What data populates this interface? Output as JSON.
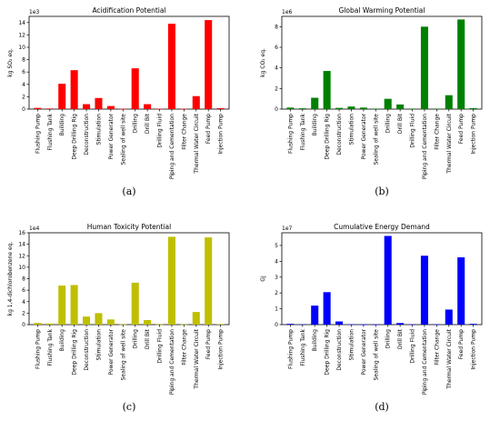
{
  "chart_data": [
    {
      "type": "bar",
      "title": "Acidification Potential",
      "ylabel": "kg SO₂ eq.",
      "multiplier": "1e3",
      "caption": "(a)",
      "color": "#ff0000",
      "ylim": [
        0,
        15
      ],
      "yticks": [
        "0",
        "2",
        "4",
        "6",
        "8",
        "10",
        "12",
        "14"
      ],
      "ytick_values": [
        0,
        2,
        4,
        6,
        8,
        10,
        12,
        14
      ],
      "categories": [
        "Flushing Pump",
        "Flushing Tank",
        "Building",
        "Deep Drilling Rig",
        "Deconstruction",
        "Stimulation",
        "Power Generator",
        "Sealing of well site",
        "Drilling",
        "Drill Bit",
        "Drilling Fluid",
        "Piping and Cementation",
        "Filter Change",
        "Thermal Water Circuit",
        "Feed Pump",
        "Injection Pump"
      ],
      "values": [
        0.2,
        0.1,
        4.1,
        6.3,
        0.8,
        1.8,
        0.5,
        0.05,
        6.6,
        0.8,
        0.05,
        13.8,
        0.05,
        2.1,
        14.4,
        0.15
      ]
    },
    {
      "type": "bar",
      "title": "Global Warming Potential",
      "ylabel": "kg CO₂ eq.",
      "multiplier": "1e6",
      "caption": "(b)",
      "color": "#008000",
      "ylim": [
        0,
        9
      ],
      "yticks": [
        "0",
        "2",
        "4",
        "6",
        "8"
      ],
      "ytick_values": [
        0,
        2,
        4,
        6,
        8
      ],
      "categories": [
        "Flushing Pump",
        "Flushing Tank",
        "Building",
        "Deep Drilling Rig",
        "Deconstruction",
        "Stimulation",
        "Power Generator",
        "Sealing of well site",
        "Drilling",
        "Drill Bit",
        "Drilling Fluid",
        "Piping and Cementation",
        "Filter Change",
        "Thermal Water Circuit",
        "Feed Pump",
        "Injection Pump"
      ],
      "values": [
        0.15,
        0.08,
        1.1,
        3.7,
        0.12,
        0.25,
        0.15,
        0.05,
        1.0,
        0.45,
        0.05,
        8.0,
        0.05,
        1.35,
        8.7,
        0.1
      ]
    },
    {
      "type": "bar",
      "title": "Human Toxicity Potential",
      "ylabel": "kg 1,4-dichlorobenzene eq.",
      "multiplier": "1e4",
      "caption": "(c)",
      "color": "#bfbf00",
      "ylim": [
        0,
        16
      ],
      "yticks": [
        "0",
        "2",
        "4",
        "6",
        "8",
        "10",
        "12",
        "14",
        "16"
      ],
      "ytick_values": [
        0,
        2,
        4,
        6,
        8,
        10,
        12,
        14,
        16
      ],
      "categories": [
        "Flushing Pump",
        "Flushing Tank",
        "Building",
        "Deep Drilling Rig",
        "Deconstruction",
        "Stimulation",
        "Power Generator",
        "Sealing of well site",
        "Drilling",
        "Drill Bit",
        "Drilling Fluid",
        "Piping and Cementation",
        "Filter Change",
        "Thermal Water Circuit",
        "Feed Pump",
        "Injection Pump"
      ],
      "values": [
        0.3,
        0.2,
        6.8,
        6.9,
        1.4,
        2.0,
        0.9,
        0.05,
        7.3,
        0.8,
        0.05,
        15.3,
        0.05,
        2.2,
        15.2,
        0.1
      ]
    },
    {
      "type": "bar",
      "title": "Cumulative Energy Demand",
      "ylabel": "GJ",
      "multiplier": "1e7",
      "caption": "(d)",
      "color": "#0000ff",
      "ylim": [
        0,
        5.8
      ],
      "yticks": [
        "0",
        "1",
        "2",
        "3",
        "4",
        "5"
      ],
      "ytick_values": [
        0,
        1,
        2,
        3,
        4,
        5
      ],
      "categories": [
        "Flushing Pump",
        "Flushing Tank",
        "Building",
        "Deep Drilling Rig",
        "Deconstruction",
        "Stimulation",
        "Power Generator",
        "Sealing of well site",
        "Drilling",
        "Drill Bit",
        "Drilling Fluid",
        "Piping and Cementation",
        "Filter Change",
        "Thermal Water Circuit",
        "Feed Pump",
        "Injection Pump"
      ],
      "values": [
        0.05,
        0.02,
        1.2,
        2.05,
        0.2,
        0.02,
        0.01,
        0.01,
        5.6,
        0.1,
        0.02,
        4.35,
        0.02,
        0.95,
        4.25,
        0.05
      ]
    }
  ]
}
